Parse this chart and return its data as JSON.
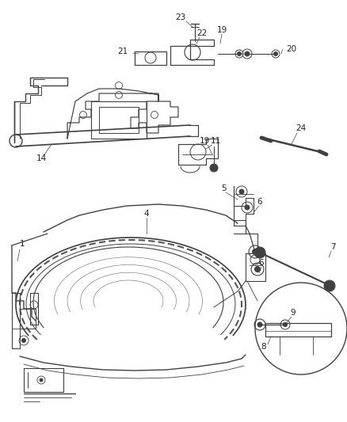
{
  "bg_color": "#ffffff",
  "line_color": "#404040",
  "label_color": "#222222",
  "figsize": [
    4.38,
    5.33
  ],
  "dpi": 100,
  "font_size": 7.5
}
